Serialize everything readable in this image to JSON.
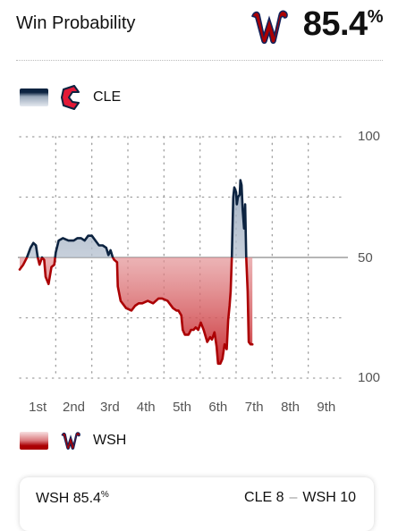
{
  "header": {
    "title": "Win Probability",
    "leader_logo": "nationals-w-logo",
    "leader_value": "85.4",
    "leader_unit": "%"
  },
  "teams": {
    "away": {
      "abbr": "CLE",
      "logo": "guardians-c-logo",
      "color": "#0c2340"
    },
    "home": {
      "abbr": "WSH",
      "logo": "nationals-w-logo",
      "color": "#ab0003"
    }
  },
  "chart_data": {
    "type": "line",
    "xlabel": "",
    "ylabel": "",
    "y_tick_labels": [
      "100",
      "50",
      "100"
    ],
    "categories": [
      "1st",
      "2nd",
      "3rd",
      "4th",
      "5th",
      "6th",
      "7th",
      "8th",
      "9th"
    ],
    "x_range": [
      0,
      9
    ],
    "y_range": [
      0,
      100
    ],
    "y_meaning": "CLE win probability (%); above 50 favors CLE, below 50 favors WSH",
    "grid": true,
    "series": [
      {
        "points": [
          [
            0.0,
            45
          ],
          [
            0.1,
            47
          ],
          [
            0.2,
            50
          ],
          [
            0.3,
            54
          ],
          [
            0.38,
            56
          ],
          [
            0.45,
            55
          ],
          [
            0.5,
            50
          ],
          [
            0.55,
            47
          ],
          [
            0.62,
            50
          ],
          [
            0.68,
            49
          ],
          [
            0.72,
            42
          ],
          [
            0.8,
            39
          ],
          [
            0.88,
            46
          ],
          [
            0.96,
            47
          ],
          [
            1.0,
            52
          ],
          [
            1.08,
            57
          ],
          [
            1.2,
            58
          ],
          [
            1.35,
            57
          ],
          [
            1.5,
            57
          ],
          [
            1.6,
            58
          ],
          [
            1.7,
            58
          ],
          [
            1.8,
            57
          ],
          [
            1.9,
            59
          ],
          [
            2.0,
            59
          ],
          [
            2.1,
            57
          ],
          [
            2.2,
            55
          ],
          [
            2.3,
            55
          ],
          [
            2.4,
            54
          ],
          [
            2.46,
            51
          ],
          [
            2.52,
            53
          ],
          [
            2.58,
            50
          ],
          [
            2.62,
            49
          ],
          [
            2.7,
            48
          ],
          [
            2.72,
            38
          ],
          [
            2.8,
            32
          ],
          [
            2.95,
            29
          ],
          [
            3.1,
            28
          ],
          [
            3.2,
            30
          ],
          [
            3.3,
            31
          ],
          [
            3.4,
            31
          ],
          [
            3.55,
            32
          ],
          [
            3.7,
            31
          ],
          [
            3.85,
            33
          ],
          [
            3.95,
            33
          ],
          [
            4.1,
            32
          ],
          [
            4.25,
            29
          ],
          [
            4.35,
            28
          ],
          [
            4.4,
            28
          ],
          [
            4.48,
            26
          ],
          [
            4.52,
            20
          ],
          [
            4.58,
            18
          ],
          [
            4.68,
            18
          ],
          [
            4.75,
            20
          ],
          [
            4.82,
            20
          ],
          [
            4.88,
            21
          ],
          [
            4.95,
            20
          ],
          [
            5.02,
            23
          ],
          [
            5.1,
            20
          ],
          [
            5.2,
            15
          ],
          [
            5.28,
            17
          ],
          [
            5.33,
            16
          ],
          [
            5.4,
            19
          ],
          [
            5.46,
            13
          ],
          [
            5.5,
            6
          ],
          [
            5.56,
            6
          ],
          [
            5.62,
            8
          ],
          [
            5.68,
            14
          ],
          [
            5.74,
            12
          ],
          [
            5.78,
            24
          ],
          [
            5.82,
            30
          ],
          [
            5.85,
            36
          ],
          [
            5.88,
            50
          ],
          [
            5.92,
            75
          ],
          [
            5.95,
            79
          ],
          [
            6.0,
            77
          ],
          [
            6.02,
            72
          ],
          [
            6.05,
            75
          ],
          [
            6.1,
            76
          ],
          [
            6.12,
            82
          ],
          [
            6.15,
            80
          ],
          [
            6.18,
            70
          ],
          [
            6.22,
            62
          ],
          [
            6.25,
            72
          ],
          [
            6.28,
            50
          ],
          [
            6.32,
            36
          ],
          [
            6.35,
            15
          ],
          [
            6.4,
            14
          ],
          [
            6.45,
            14
          ]
        ]
      }
    ]
  },
  "footer": {
    "lead_team": "WSH",
    "lead_value": "85.4",
    "lead_unit": "%",
    "away_abbr": "CLE",
    "away_score": "8",
    "separator": "–",
    "home_abbr": "WSH",
    "home_score": "10"
  }
}
